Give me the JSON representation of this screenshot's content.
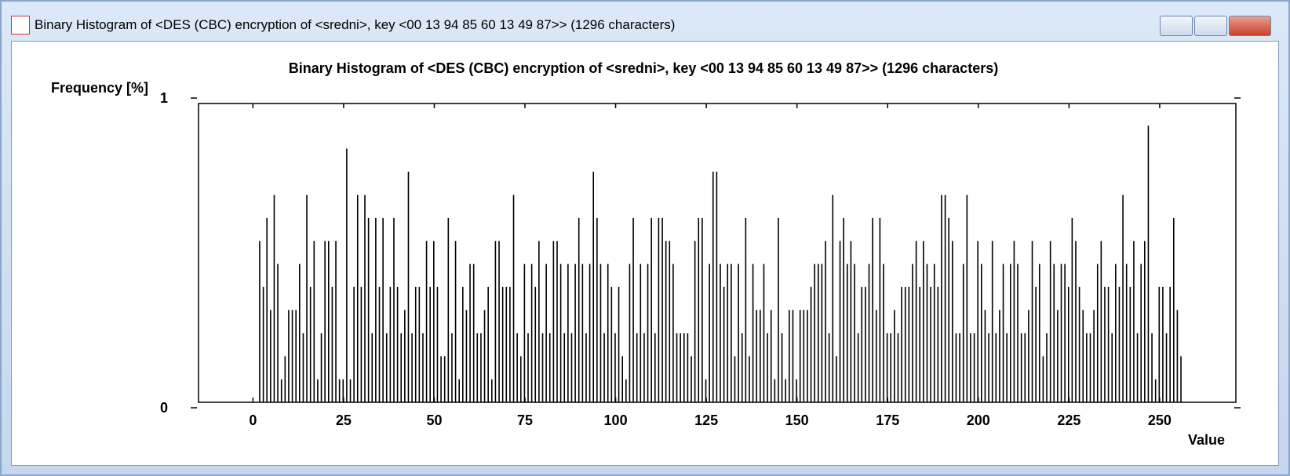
{
  "window": {
    "title": "Binary Histogram of <DES (CBC) encryption of <sredni>, key <00 13 94 85 60 13 49 87>> (1296 characters)"
  },
  "chart_data": {
    "type": "histogram",
    "title": "Binary Histogram of <DES (CBC) encryption of <sredni>, key <00 13 94 85 60 13 49 87>> (1296 characters)",
    "y_label": "Frequency [%]",
    "x_label": "Value",
    "color": "#000000",
    "xlim": [
      -15,
      271
    ],
    "xticks": [
      0,
      25,
      50,
      75,
      100,
      125,
      150,
      175,
      200,
      225,
      250
    ],
    "ylim": [
      0,
      1
    ],
    "yticks": [
      0,
      1
    ],
    "x": [
      0,
      1,
      2,
      3,
      4,
      5,
      6,
      7,
      8,
      9,
      10,
      11,
      12,
      13,
      14,
      15,
      16,
      17,
      18,
      19,
      20,
      21,
      22,
      23,
      24,
      25,
      26,
      27,
      28,
      29,
      30,
      31,
      32,
      33,
      34,
      35,
      36,
      37,
      38,
      39,
      40,
      41,
      42,
      43,
      44,
      45,
      46,
      47,
      48,
      49,
      50,
      51,
      52,
      53,
      54,
      55,
      56,
      57,
      58,
      59,
      60,
      61,
      62,
      63,
      64,
      65,
      66,
      67,
      68,
      69,
      70,
      71,
      72,
      73,
      74,
      75,
      76,
      77,
      78,
      79,
      80,
      81,
      82,
      83,
      84,
      85,
      86,
      87,
      88,
      89,
      90,
      91,
      92,
      93,
      94,
      95,
      96,
      97,
      98,
      99,
      100,
      101,
      102,
      103,
      104,
      105,
      106,
      107,
      108,
      109,
      110,
      111,
      112,
      113,
      114,
      115,
      116,
      117,
      118,
      119,
      120,
      121,
      122,
      123,
      124,
      125,
      126,
      127,
      128,
      129,
      130,
      131,
      132,
      133,
      134,
      135,
      136,
      137,
      138,
      139,
      140,
      141,
      142,
      143,
      144,
      145,
      146,
      147,
      148,
      149,
      150,
      151,
      152,
      153,
      154,
      155,
      156,
      157,
      158,
      159,
      160,
      161,
      162,
      163,
      164,
      165,
      166,
      167,
      168,
      169,
      170,
      171,
      172,
      173,
      174,
      175,
      176,
      177,
      178,
      179,
      180,
      181,
      182,
      183,
      184,
      185,
      186,
      187,
      188,
      189,
      190,
      191,
      192,
      193,
      194,
      195,
      196,
      197,
      198,
      199,
      200,
      201,
      202,
      203,
      204,
      205,
      206,
      207,
      208,
      209,
      210,
      211,
      212,
      213,
      214,
      215,
      216,
      217,
      218,
      219,
      220,
      221,
      222,
      223,
      224,
      225,
      226,
      227,
      228,
      229,
      230,
      231,
      232,
      233,
      234,
      235,
      236,
      237,
      238,
      239,
      240,
      241,
      242,
      243,
      244,
      245,
      246,
      247,
      248,
      249,
      250,
      251,
      252,
      253,
      254,
      255
    ],
    "values": [
      0,
      0.54,
      0.386,
      0.617,
      0.309,
      0.694,
      0.463,
      0.077,
      0.154,
      0.309,
      0.309,
      0.309,
      0.463,
      0.231,
      0.694,
      0.386,
      0.54,
      0.077,
      0.231,
      0.54,
      0.54,
      0.386,
      0.54,
      0.077,
      0.077,
      0.849,
      0.077,
      0.386,
      0.694,
      0.386,
      0.694,
      0.617,
      0.231,
      0.617,
      0.386,
      0.617,
      0.231,
      0.386,
      0.617,
      0.386,
      0.231,
      0.309,
      0.772,
      0.231,
      0.386,
      0.386,
      0.231,
      0.54,
      0.386,
      0.54,
      0.386,
      0.154,
      0.154,
      0.617,
      0.231,
      0.54,
      0.077,
      0.386,
      0.309,
      0.463,
      0.463,
      0.231,
      0.231,
      0.309,
      0.386,
      0.077,
      0.54,
      0.54,
      0.386,
      0.386,
      0.386,
      0.694,
      0.231,
      0.154,
      0.463,
      0.231,
      0.463,
      0.386,
      0.54,
      0.231,
      0.463,
      0.231,
      0.54,
      0.54,
      0.463,
      0.231,
      0.463,
      0.231,
      0.463,
      0.617,
      0.463,
      0.231,
      0.463,
      0.772,
      0.617,
      0.463,
      0.231,
      0.463,
      0.386,
      0.231,
      0.386,
      0.154,
      0.077,
      0.463,
      0.617,
      0.231,
      0.463,
      0.231,
      0.463,
      0.617,
      0.231,
      0.617,
      0.617,
      0.54,
      0.54,
      0.463,
      0.231,
      0.231,
      0.231,
      0.231,
      0.154,
      0.54,
      0.617,
      0.617,
      0.077,
      0.463,
      0.772,
      0.772,
      0.463,
      0.386,
      0.463,
      0.463,
      0.154,
      0.463,
      0.231,
      0.617,
      0.154,
      0.463,
      0.309,
      0.309,
      0.463,
      0.231,
      0.309,
      0.077,
      0.617,
      0.231,
      0.077,
      0.309,
      0.309,
      0.077,
      0.309,
      0.309,
      0.309,
      0.386,
      0.463,
      0.463,
      0.463,
      0.54,
      0.231,
      0.694,
      0.154,
      0.54,
      0.617,
      0.463,
      0.54,
      0.463,
      0.231,
      0.386,
      0.386,
      0.463,
      0.617,
      0.309,
      0.617,
      0.463,
      0.231,
      0.231,
      0.309,
      0.231,
      0.386,
      0.386,
      0.386,
      0.463,
      0.54,
      0.386,
      0.54,
      0.463,
      0.386,
      0.463,
      0.386,
      0.694,
      0.694,
      0.617,
      0.54,
      0.231,
      0.231,
      0.463,
      0.694,
      0.231,
      0.231,
      0.54,
      0.463,
      0.309,
      0.231,
      0.54,
      0.231,
      0.309,
      0.463,
      0.231,
      0.463,
      0.54,
      0.463,
      0.231,
      0.231,
      0.309,
      0.54,
      0.386,
      0.463,
      0.154,
      0.231,
      0.54,
      0.463,
      0.309,
      0.463,
      0.463,
      0.386,
      0.617,
      0.54,
      0.386,
      0.309,
      0.231,
      0.231,
      0.309,
      0.463,
      0.54,
      0.386,
      0.386,
      0.231,
      0.463,
      0.386,
      0.694,
      0.463,
      0.386,
      0.54,
      0.231,
      0.463,
      0.54,
      0.926,
      0.231,
      0.077,
      0.386,
      0.386,
      0.231,
      0.386,
      0.617,
      0.309,
      0.154
    ]
  }
}
